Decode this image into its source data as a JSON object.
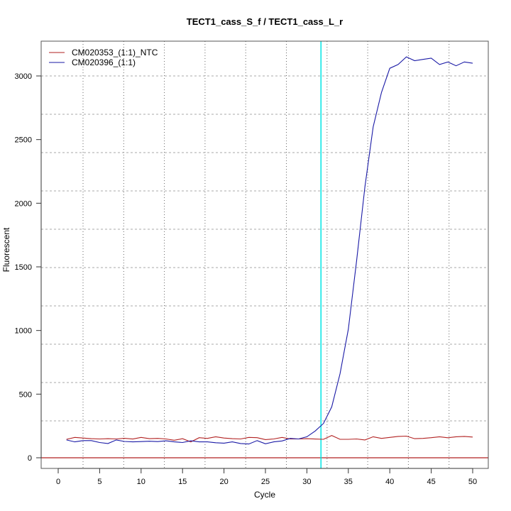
{
  "chart_data": {
    "type": "line",
    "title": "TECT1_cass_S_f / TECT1_cass_L_r",
    "xlabel": "Cycle",
    "ylabel": "Fluorescent",
    "xlim": [
      -2,
      52
    ],
    "ylim": [
      -30,
      3270
    ],
    "xticks": [
      0,
      5,
      10,
      15,
      20,
      25,
      30,
      35,
      40,
      45,
      50
    ],
    "yticks": [
      0,
      500,
      1000,
      1500,
      2000,
      2500,
      3000
    ],
    "grid": true,
    "legend_position": "top-left",
    "threshold_cycle_line": 31.7,
    "threshold_color": "#00e5e5",
    "baseline_value": 0,
    "baseline_color": "#b22222",
    "x": [
      1,
      2,
      3,
      4,
      5,
      6,
      7,
      8,
      9,
      10,
      11,
      12,
      13,
      14,
      15,
      16,
      17,
      18,
      19,
      20,
      21,
      22,
      23,
      24,
      25,
      26,
      27,
      28,
      29,
      30,
      31,
      32,
      33,
      34,
      35,
      36,
      37,
      38,
      39,
      40,
      41,
      42,
      43,
      44,
      45,
      46,
      47,
      48,
      49,
      50
    ],
    "series": [
      {
        "name": "CM020353_(1:1)_NTC",
        "color": "#b22222",
        "values": [
          145,
          160,
          155,
          150,
          148,
          150,
          148,
          153,
          147,
          160,
          150,
          152,
          148,
          138,
          150,
          125,
          158,
          152,
          165,
          155,
          150,
          148,
          160,
          158,
          143,
          148,
          160,
          148,
          148,
          150,
          147,
          145,
          175,
          145,
          145,
          148,
          140,
          165,
          152,
          160,
          168,
          170,
          150,
          152,
          158,
          165,
          157,
          165,
          168,
          163
        ]
      },
      {
        "name": "CM020396_(1:1)",
        "color": "#1a1aa6",
        "values": [
          140,
          125,
          135,
          135,
          120,
          112,
          140,
          128,
          125,
          127,
          130,
          127,
          133,
          125,
          120,
          133,
          125,
          125,
          118,
          115,
          125,
          112,
          108,
          135,
          110,
          125,
          132,
          152,
          148,
          165,
          210,
          270,
          400,
          660,
          1010,
          1550,
          2130,
          2600,
          2870,
          3060,
          3090,
          3150,
          3120,
          3130,
          3140,
          3090,
          3110,
          3080,
          3110,
          3100
        ]
      }
    ]
  }
}
